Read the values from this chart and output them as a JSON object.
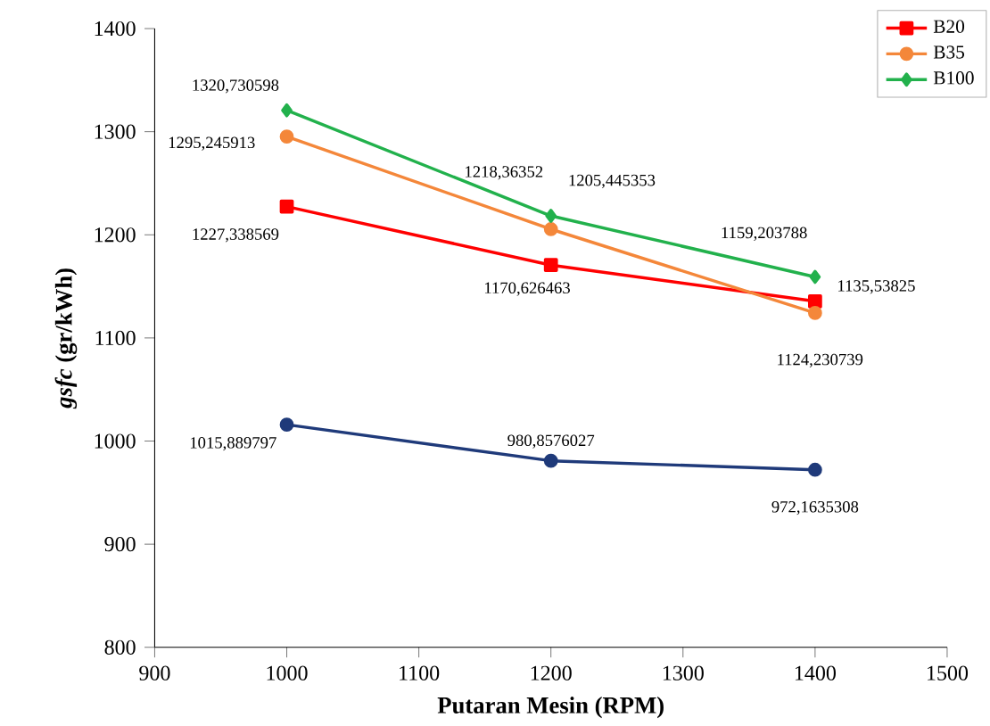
{
  "chart_data": {
    "type": "line",
    "xlabel": "Putaran Mesin (RPM)",
    "ylabel": "*gsfc* (gr/kWh)",
    "xlim": [
      900,
      1500
    ],
    "xticks": [
      900,
      1000,
      1100,
      1200,
      1300,
      1400,
      1500
    ],
    "ylim": [
      800,
      1400
    ],
    "yticks": [
      800,
      900,
      1000,
      1100,
      1200,
      1300,
      1400
    ],
    "grid": false,
    "legend": "top right",
    "x": [
      1000,
      1200,
      1400
    ],
    "series": [
      {
        "name": "B20",
        "color": "#ff0000",
        "marker": "square",
        "values": [
          1227.338569,
          1170.626463,
          1135.53825
        ],
        "value_labels": [
          "1227,338569",
          "1170,626463",
          "1135,53825"
        ]
      },
      {
        "name": "B35",
        "color": "#f4873a",
        "marker": "circle",
        "values": [
          1295.245913,
          1205.445353,
          1124.230739
        ],
        "value_labels": [
          "1295,245913",
          "1205,445353",
          "1124,230739"
        ]
      },
      {
        "name": "B100",
        "color": "#22b14c",
        "marker": "diamond",
        "values": [
          1320.730598,
          1218.36352,
          1159.203788
        ],
        "value_labels": [
          "1320,730598",
          "1218,36352",
          "1159,203788"
        ]
      },
      {
        "color": "#1f3a7a",
        "marker": "circle",
        "values": [
          1015.889797,
          980.8576027,
          972.1635308
        ],
        "value_labels": [
          "1015,889797",
          "980,8576027",
          "972,1635308"
        ]
      }
    ]
  }
}
